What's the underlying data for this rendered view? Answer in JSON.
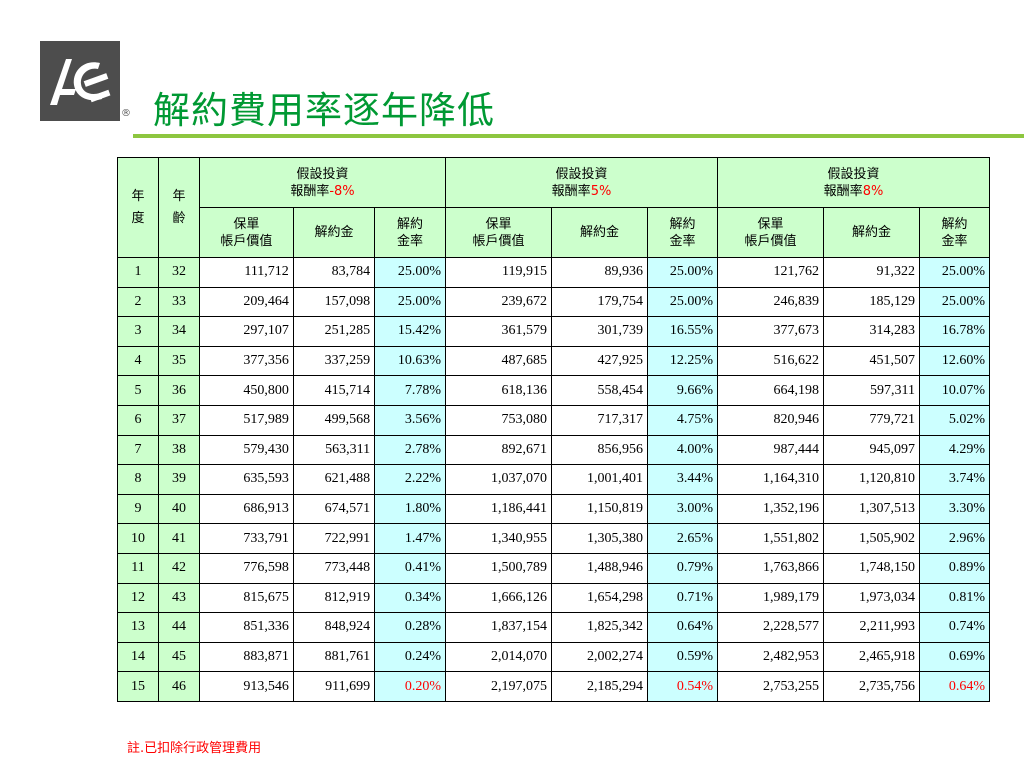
{
  "header": {
    "title": "解約費用率逐年降低",
    "logo_text": "ACE",
    "registered_mark": "®"
  },
  "colors": {
    "title": "#009933",
    "rule": "#8dc63f",
    "header_bg": "#ccffcc",
    "rate_bg": "#ccffff",
    "highlight": "#ff0000"
  },
  "table": {
    "year_header": "年度",
    "age_header": "年齡",
    "groups": [
      {
        "line1": "假設投資",
        "line2_prefix": "報酬率",
        "rate": "-8%"
      },
      {
        "line1": "假設投資",
        "line2_prefix": "報酬率",
        "rate": "5%"
      },
      {
        "line1": "假設投資",
        "line2_prefix": "報酬率",
        "rate": "8%"
      }
    ],
    "subheaders": [
      {
        "line1": "保單",
        "line2": "帳戶價值"
      },
      {
        "line1": "解約金",
        "line2": ""
      },
      {
        "line1": "解約",
        "line2": "金率"
      }
    ],
    "rows": [
      {
        "year": "1",
        "age": "32",
        "vals": [
          "111,712",
          "83,784",
          "25.00%",
          "119,915",
          "89,936",
          "25.00%",
          "121,762",
          "91,322",
          "25.00%"
        ]
      },
      {
        "year": "2",
        "age": "33",
        "vals": [
          "209,464",
          "157,098",
          "25.00%",
          "239,672",
          "179,754",
          "25.00%",
          "246,839",
          "185,129",
          "25.00%"
        ]
      },
      {
        "year": "3",
        "age": "34",
        "vals": [
          "297,107",
          "251,285",
          "15.42%",
          "361,579",
          "301,739",
          "16.55%",
          "377,673",
          "314,283",
          "16.78%"
        ]
      },
      {
        "year": "4",
        "age": "35",
        "vals": [
          "377,356",
          "337,259",
          "10.63%",
          "487,685",
          "427,925",
          "12.25%",
          "516,622",
          "451,507",
          "12.60%"
        ]
      },
      {
        "year": "5",
        "age": "36",
        "vals": [
          "450,800",
          "415,714",
          "7.78%",
          "618,136",
          "558,454",
          "9.66%",
          "664,198",
          "597,311",
          "10.07%"
        ]
      },
      {
        "year": "6",
        "age": "37",
        "vals": [
          "517,989",
          "499,568",
          "3.56%",
          "753,080",
          "717,317",
          "4.75%",
          "820,946",
          "779,721",
          "5.02%"
        ]
      },
      {
        "year": "7",
        "age": "38",
        "vals": [
          "579,430",
          "563,311",
          "2.78%",
          "892,671",
          "856,956",
          "4.00%",
          "987,444",
          "945,097",
          "4.29%"
        ]
      },
      {
        "year": "8",
        "age": "39",
        "vals": [
          "635,593",
          "621,488",
          "2.22%",
          "1,037,070",
          "1,001,401",
          "3.44%",
          "1,164,310",
          "1,120,810",
          "3.74%"
        ]
      },
      {
        "year": "9",
        "age": "40",
        "vals": [
          "686,913",
          "674,571",
          "1.80%",
          "1,186,441",
          "1,150,819",
          "3.00%",
          "1,352,196",
          "1,307,513",
          "3.30%"
        ]
      },
      {
        "year": "10",
        "age": "41",
        "vals": [
          "733,791",
          "722,991",
          "1.47%",
          "1,340,955",
          "1,305,380",
          "2.65%",
          "1,551,802",
          "1,505,902",
          "2.96%"
        ]
      },
      {
        "year": "11",
        "age": "42",
        "vals": [
          "776,598",
          "773,448",
          "0.41%",
          "1,500,789",
          "1,488,946",
          "0.79%",
          "1,763,866",
          "1,748,150",
          "0.89%"
        ]
      },
      {
        "year": "12",
        "age": "43",
        "vals": [
          "815,675",
          "812,919",
          "0.34%",
          "1,666,126",
          "1,654,298",
          "0.71%",
          "1,989,179",
          "1,973,034",
          "0.81%"
        ]
      },
      {
        "year": "13",
        "age": "44",
        "vals": [
          "851,336",
          "848,924",
          "0.28%",
          "1,837,154",
          "1,825,342",
          "0.64%",
          "2,228,577",
          "2,211,993",
          "0.74%"
        ]
      },
      {
        "year": "14",
        "age": "45",
        "vals": [
          "883,871",
          "881,761",
          "0.24%",
          "2,014,070",
          "2,002,274",
          "0.59%",
          "2,482,953",
          "2,465,918",
          "0.69%"
        ]
      },
      {
        "year": "15",
        "age": "46",
        "vals": [
          "913,546",
          "911,699",
          "0.20%",
          "2,197,075",
          "2,185,294",
          "0.54%",
          "2,753,255",
          "2,735,756",
          "0.64%"
        ],
        "highlight_rates": true
      }
    ]
  },
  "footnote": "註.已扣除行政管理費用"
}
